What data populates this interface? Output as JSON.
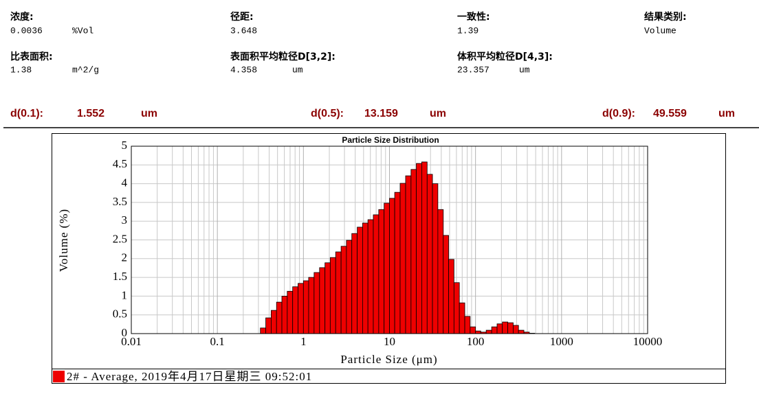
{
  "header": {
    "fields": [
      {
        "label": "浓度:",
        "value": "0.0036",
        "unit": "%Vol"
      },
      {
        "label": "径距:",
        "value": "3.648"
      },
      {
        "label": "一致性:",
        "value": "1.39"
      },
      {
        "label": "结果类别:",
        "value": "Volume"
      },
      {
        "label": "比表面积:",
        "value": "1.38",
        "unit": "m^2/g"
      },
      {
        "label": "表面积平均粒径D[3,2]:",
        "value": "4.358",
        "unit": "um"
      },
      {
        "label": "体积平均粒径D[4,3]:",
        "value": "23.357",
        "unit": "um"
      }
    ]
  },
  "results": [
    {
      "label": "d(0.1):",
      "value": "1.552",
      "unit": "um"
    },
    {
      "label": "d(0.5):",
      "value": "13.159",
      "unit": "um"
    },
    {
      "label": "d(0.9):",
      "value": "49.559",
      "unit": "um"
    }
  ],
  "chart_data": {
    "type": "histogram",
    "title": "Particle Size Distribution",
    "x_label": "Particle Size (μm)",
    "y_label": "Volume (%)",
    "x_scale": "log",
    "xlim": [
      0.01,
      10000
    ],
    "xticks": [
      0.01,
      0.1,
      1,
      10,
      100,
      1000,
      10000
    ],
    "ylim": [
      0,
      5
    ],
    "yticks": [
      0,
      0.5,
      1,
      1.5,
      2,
      2.5,
      3,
      3.5,
      4,
      4.5,
      5
    ],
    "grid": true,
    "bins": [
      0.316,
      0.365,
      0.422,
      0.487,
      0.562,
      0.649,
      0.75,
      0.866,
      1,
      1.15,
      1.33,
      1.54,
      1.78,
      2.05,
      2.37,
      2.74,
      3.16,
      3.65,
      4.22,
      4.87,
      5.62,
      6.49,
      7.5,
      8.66,
      10,
      11.5,
      13.3,
      15.4,
      17.8,
      20.5,
      23.7,
      27.4,
      31.6,
      36.5,
      42.2,
      48.7,
      56.2,
      64.9,
      75,
      86.6,
      100,
      115,
      133,
      154,
      178,
      205,
      237,
      274,
      316,
      365,
      422,
      487
    ],
    "series": [
      {
        "name": "2# - Average, 2019年4月17日星期三 09:52:01",
        "color": "#ee0000",
        "values": [
          0.15,
          0.42,
          0.62,
          0.84,
          1.0,
          1.13,
          1.25,
          1.34,
          1.41,
          1.5,
          1.63,
          1.76,
          1.89,
          2.03,
          2.18,
          2.33,
          2.49,
          2.67,
          2.84,
          2.95,
          3.04,
          3.17,
          3.31,
          3.48,
          3.61,
          3.77,
          4.01,
          4.21,
          4.38,
          4.54,
          4.58,
          4.25,
          4.0,
          3.31,
          2.62,
          1.98,
          1.36,
          0.82,
          0.46,
          0.18,
          0.07,
          0.04,
          0.09,
          0.18,
          0.26,
          0.31,
          0.29,
          0.22,
          0.09,
          0.04,
          0.01
        ]
      }
    ]
  }
}
